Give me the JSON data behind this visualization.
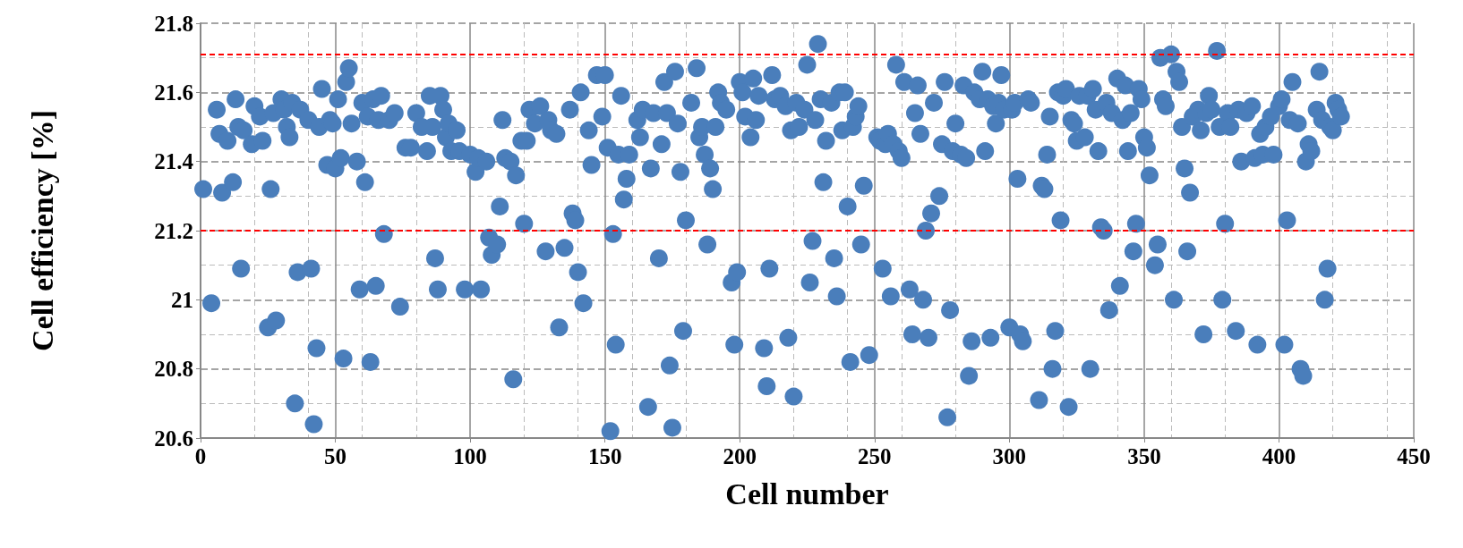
{
  "chart_data": {
    "type": "scatter",
    "xlabel": "Cell number",
    "ylabel": "Cell efficiency [%]",
    "xlim": [
      0,
      450
    ],
    "xticks": [
      0,
      50,
      100,
      150,
      200,
      250,
      300,
      350,
      400,
      450
    ],
    "ylim": [
      20.6,
      21.8
    ],
    "yticks": [
      20.6,
      20.8,
      21,
      21.2,
      21.4,
      21.6,
      21.8
    ],
    "grid": true,
    "marker": "circle",
    "ref_lines": [
      {
        "axis": "y",
        "value": 21.71,
        "color": "#ff0000",
        "line_style": "dashed"
      },
      {
        "axis": "y",
        "value": 21.2,
        "color": "#ff0000",
        "line_style": "dashed"
      }
    ],
    "series": [
      {
        "color": "#4a7ebb",
        "x": [
          1,
          4,
          6,
          7,
          8,
          10,
          12,
          13,
          14,
          15,
          16,
          19,
          20,
          22,
          23,
          25,
          26,
          27,
          28,
          30,
          31,
          32,
          33,
          34,
          35,
          36,
          37,
          40,
          41,
          42,
          43,
          44,
          45,
          47,
          48,
          49,
          50,
          51,
          52,
          53,
          54,
          55,
          56,
          58,
          59,
          60,
          61,
          62,
          63,
          64,
          65,
          66,
          67,
          68,
          70,
          72,
          74,
          76,
          78,
          80,
          82,
          84,
          85,
          86,
          87,
          88,
          89,
          90,
          91,
          92,
          93,
          95,
          96,
          98,
          100,
          102,
          103,
          104,
          106,
          107,
          108,
          110,
          111,
          112,
          113,
          115,
          116,
          117,
          119,
          120,
          121,
          122,
          124,
          126,
          128,
          129,
          130,
          132,
          133,
          135,
          137,
          138,
          139,
          140,
          141,
          142,
          144,
          145,
          147,
          149,
          150,
          151,
          152,
          153,
          154,
          155,
          156,
          157,
          158,
          159,
          162,
          163,
          164,
          166,
          167,
          168,
          170,
          171,
          172,
          173,
          174,
          175,
          176,
          177,
          178,
          179,
          180,
          182,
          184,
          185,
          186,
          187,
          188,
          189,
          190,
          191,
          192,
          193,
          195,
          197,
          198,
          199,
          200,
          201,
          202,
          204,
          205,
          206,
          207,
          209,
          210,
          211,
          212,
          213,
          215,
          217,
          218,
          219,
          220,
          221,
          222,
          224,
          225,
          226,
          227,
          228,
          229,
          230,
          231,
          232,
          234,
          235,
          236,
          237,
          238,
          239,
          240,
          241,
          242,
          243,
          244,
          245,
          246,
          248,
          251,
          252,
          253,
          254,
          255,
          256,
          257,
          258,
          259,
          260,
          261,
          263,
          264,
          265,
          266,
          267,
          268,
          269,
          270,
          271,
          272,
          274,
          275,
          276,
          277,
          278,
          279,
          280,
          282,
          283,
          284,
          285,
          286,
          287,
          289,
          290,
          291,
          292,
          293,
          294,
          295,
          296,
          297,
          298,
          300,
          301,
          302,
          303,
          304,
          305,
          307,
          308,
          311,
          312,
          313,
          314,
          315,
          316,
          317,
          318,
          319,
          320,
          321,
          322,
          323,
          324,
          325,
          326,
          328,
          329,
          330,
          331,
          332,
          333,
          334,
          335,
          336,
          337,
          338,
          340,
          341,
          342,
          343,
          344,
          345,
          346,
          347,
          348,
          349,
          350,
          351,
          352,
          354,
          355,
          356,
          357,
          358,
          360,
          361,
          362,
          363,
          364,
          365,
          366,
          367,
          368,
          370,
          371,
          372,
          373,
          374,
          375,
          377,
          378,
          379,
          380,
          381,
          382,
          384,
          385,
          386,
          388,
          390,
          391,
          392,
          393,
          394,
          395,
          397,
          398,
          400,
          401,
          402,
          403,
          404,
          405,
          407,
          408,
          409,
          410,
          411,
          412,
          414,
          415,
          416,
          417,
          418,
          419,
          420,
          421,
          422,
          423
        ],
        "values": [
          21.32,
          20.99,
          21.55,
          21.48,
          21.31,
          21.46,
          21.34,
          21.58,
          21.5,
          21.09,
          21.49,
          21.45,
          21.56,
          21.53,
          21.46,
          20.92,
          21.32,
          21.54,
          20.94,
          21.58,
          21.55,
          21.5,
          21.47,
          21.57,
          20.7,
          21.08,
          21.55,
          21.52,
          21.09,
          20.64,
          20.86,
          21.5,
          21.61,
          21.39,
          21.52,
          21.51,
          21.38,
          21.58,
          21.41,
          20.83,
          21.63,
          21.67,
          21.51,
          21.4,
          21.03,
          21.57,
          21.34,
          21.53,
          20.82,
          21.58,
          21.04,
          21.52,
          21.59,
          21.19,
          21.52,
          21.54,
          20.98,
          21.44,
          21.44,
          21.54,
          21.5,
          21.43,
          21.59,
          21.5,
          21.12,
          21.03,
          21.59,
          21.55,
          21.47,
          21.51,
          21.43,
          21.49,
          21.43,
          21.03,
          21.42,
          21.37,
          21.41,
          21.03,
          21.4,
          21.18,
          21.13,
          21.16,
          21.27,
          21.52,
          21.41,
          21.4,
          20.77,
          21.36,
          21.46,
          21.22,
          21.46,
          21.55,
          21.51,
          21.56,
          21.14,
          21.52,
          21.49,
          21.48,
          20.92,
          21.15,
          21.55,
          21.25,
          21.23,
          21.08,
          21.6,
          20.99,
          21.49,
          21.39,
          21.65,
          21.53,
          21.65,
          21.44,
          20.62,
          21.19,
          20.87,
          21.42,
          21.59,
          21.29,
          21.35,
          21.42,
          21.52,
          21.47,
          21.55,
          20.69,
          21.38,
          21.54,
          21.12,
          21.45,
          21.63,
          21.54,
          20.81,
          20.63,
          21.66,
          21.51,
          21.37,
          20.91,
          21.23,
          21.57,
          21.67,
          21.47,
          21.5,
          21.42,
          21.16,
          21.38,
          21.32,
          21.5,
          21.6,
          21.57,
          21.55,
          21.05,
          20.87,
          21.08,
          21.63,
          21.6,
          21.53,
          21.47,
          21.64,
          21.52,
          21.59,
          20.86,
          20.75,
          21.09,
          21.65,
          21.58,
          21.59,
          21.56,
          20.89,
          21.49,
          20.72,
          21.57,
          21.5,
          21.55,
          21.68,
          21.05,
          21.17,
          21.52,
          21.74,
          21.58,
          21.34,
          21.46,
          21.57,
          21.12,
          21.01,
          21.6,
          21.49,
          21.6,
          21.27,
          20.82,
          21.5,
          21.53,
          21.56,
          21.16,
          21.33,
          20.84,
          21.47,
          21.46,
          21.09,
          21.45,
          21.48,
          21.01,
          21.45,
          21.68,
          21.43,
          21.41,
          21.63,
          21.03,
          20.9,
          21.54,
          21.62,
          21.48,
          21.0,
          21.2,
          20.89,
          21.25,
          21.57,
          21.3,
          21.45,
          21.63,
          20.66,
          20.97,
          21.43,
          21.51,
          21.42,
          21.62,
          21.41,
          20.78,
          20.88,
          21.6,
          21.58,
          21.66,
          21.43,
          21.58,
          20.89,
          21.56,
          21.51,
          21.57,
          21.65,
          21.55,
          20.92,
          21.55,
          21.57,
          21.35,
          20.9,
          20.88,
          21.58,
          21.57,
          20.71,
          21.33,
          21.32,
          21.42,
          21.53,
          20.8,
          20.91,
          21.6,
          21.23,
          21.59,
          21.61,
          20.69,
          21.52,
          21.51,
          21.46,
          21.59,
          21.47,
          21.59,
          20.8,
          21.61,
          21.55,
          21.43,
          21.21,
          21.2,
          21.57,
          20.97,
          21.54,
          21.64,
          21.04,
          21.52,
          21.62,
          21.43,
          21.54,
          21.14,
          21.22,
          21.61,
          21.58,
          21.47,
          21.44,
          21.36,
          21.1,
          21.16,
          21.7,
          21.58,
          21.56,
          21.71,
          21.0,
          21.66,
          21.63,
          21.5,
          21.38,
          21.14,
          21.31,
          21.53,
          21.55,
          21.49,
          20.9,
          21.54,
          21.59,
          21.55,
          21.72,
          21.5,
          21.0,
          21.22,
          21.54,
          21.5,
          20.91,
          21.55,
          21.4,
          21.54,
          21.56,
          21.41,
          20.87,
          21.48,
          21.42,
          21.5,
          21.53,
          21.42,
          21.56,
          21.58,
          20.87,
          21.23,
          21.52,
          21.63,
          21.51,
          20.8,
          20.78,
          21.4,
          21.45,
          21.43,
          21.55,
          21.66,
          21.52,
          21.0,
          21.09,
          21.5,
          21.49,
          21.57,
          21.55,
          21.53
        ]
      }
    ]
  }
}
